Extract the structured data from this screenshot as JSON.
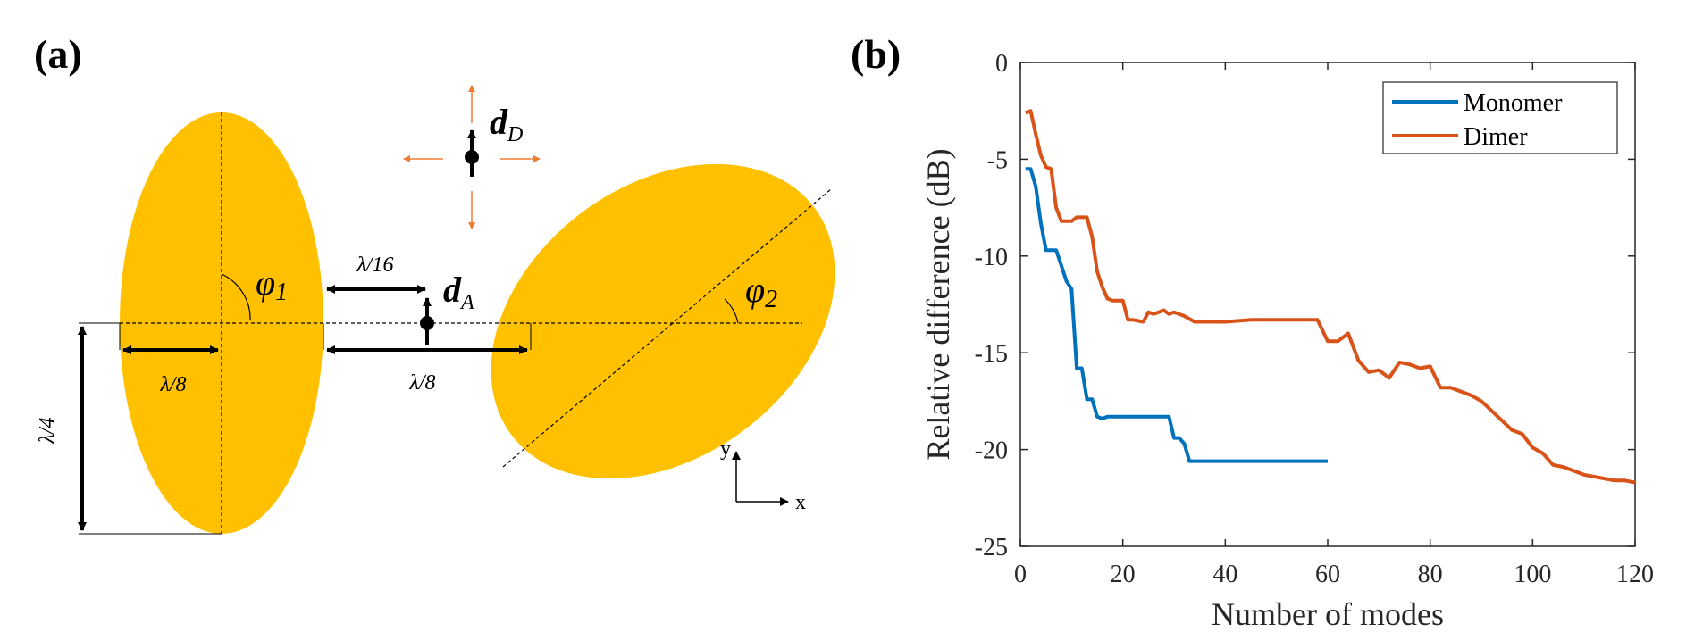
{
  "panel_a": {
    "label": "(a)",
    "phi1": "φ",
    "phi1_sub": "1",
    "phi2": "φ",
    "phi2_sub": "2",
    "dD": "d",
    "dD_sub": "D",
    "dA": "d",
    "dA_sub": "A",
    "gap_label": "λ/16",
    "semi_axis_label": "λ/8",
    "spacing_label": "λ/8",
    "height_label": "λ/4",
    "axis_y": "y",
    "axis_x": "x",
    "colors": {
      "ellipse": "#FFC000",
      "arrow_small": "#ED7D31",
      "black": "#000000"
    }
  },
  "panel_b": {
    "label": "(b)",
    "chart_data": {
      "type": "line",
      "xlabel": "Number of modes",
      "ylabel": "Relative difference (dB)",
      "xlim": [
        0,
        120
      ],
      "ylim": [
        -25,
        0
      ],
      "xticks": [
        0,
        20,
        40,
        60,
        80,
        100,
        120
      ],
      "yticks": [
        0,
        -5,
        -10,
        -15,
        -20,
        -25
      ],
      "legend_position": "top-right",
      "grid": false,
      "series": [
        {
          "name": "Monomer",
          "color": "#0072BD",
          "x": [
            1,
            2,
            3,
            4,
            5,
            6,
            7,
            8,
            9,
            10,
            11,
            12,
            13,
            14,
            15,
            16,
            17,
            18,
            19,
            20,
            22,
            24,
            26,
            28,
            29,
            30,
            31,
            32,
            33,
            34,
            36,
            40,
            45,
            50,
            55,
            60
          ],
          "y": [
            -5.5,
            -5.5,
            -6.4,
            -8.3,
            -9.7,
            -9.7,
            -9.7,
            -10.5,
            -11.3,
            -11.7,
            -15.8,
            -15.8,
            -17.4,
            -17.4,
            -18.3,
            -18.4,
            -18.3,
            -18.3,
            -18.3,
            -18.3,
            -18.3,
            -18.3,
            -18.3,
            -18.3,
            -18.3,
            -19.4,
            -19.4,
            -19.7,
            -20.6,
            -20.6,
            -20.6,
            -20.6,
            -20.6,
            -20.6,
            -20.6,
            -20.6
          ]
        },
        {
          "name": "Dimer",
          "color": "#D95319",
          "x": [
            1,
            2,
            3,
            4,
            5,
            6,
            7,
            8,
            9,
            10,
            11,
            12,
            13,
            14,
            15,
            16,
            17,
            18,
            19,
            20,
            21,
            22,
            24,
            25,
            26,
            27,
            28,
            29,
            30,
            32,
            34,
            36,
            40,
            45,
            50,
            55,
            58,
            60,
            62,
            64,
            66,
            68,
            70,
            72,
            74,
            76,
            78,
            80,
            82,
            84,
            86,
            88,
            90,
            92,
            94,
            96,
            98,
            100,
            102,
            104,
            106,
            108,
            110,
            112,
            114,
            116,
            118,
            120
          ],
          "y": [
            -2.6,
            -2.5,
            -3.7,
            -4.8,
            -5.4,
            -5.5,
            -7.5,
            -8.2,
            -8.2,
            -8.2,
            -8.0,
            -8.0,
            -8.0,
            -9.0,
            -10.8,
            -11.6,
            -12.2,
            -12.3,
            -12.3,
            -12.3,
            -13.3,
            -13.3,
            -13.4,
            -12.9,
            -13.0,
            -12.9,
            -12.8,
            -13.0,
            -12.9,
            -13.1,
            -13.4,
            -13.4,
            -13.4,
            -13.3,
            -13.3,
            -13.3,
            -13.3,
            -14.4,
            -14.4,
            -14.0,
            -15.4,
            -16.0,
            -15.9,
            -16.3,
            -15.5,
            -15.6,
            -15.8,
            -15.7,
            -16.8,
            -16.8,
            -17.0,
            -17.2,
            -17.5,
            -18.0,
            -18.5,
            -19.0,
            -19.2,
            -19.9,
            -20.2,
            -20.8,
            -20.9,
            -21.1,
            -21.3,
            -21.4,
            -21.5,
            -21.6,
            -21.6,
            -21.7
          ]
        }
      ]
    }
  }
}
